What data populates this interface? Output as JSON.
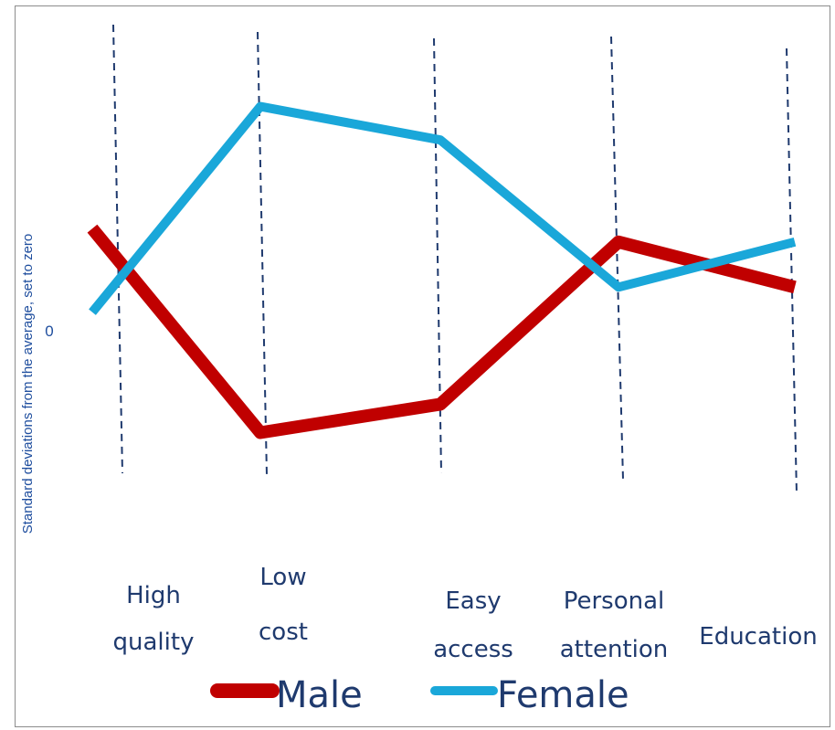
{
  "chart_data": {
    "type": "line",
    "ylabel": "Standard deviations from the average, set to zero",
    "y_ticks": [
      "0"
    ],
    "categories": [
      {
        "lines": [
          "High",
          "quality"
        ]
      },
      {
        "lines": [
          "Low",
          "cost"
        ]
      },
      {
        "lines": [
          "Easy",
          "access"
        ]
      },
      {
        "lines": [
          "Personal",
          "attention"
        ]
      },
      {
        "lines": [
          "Education"
        ]
      }
    ],
    "series": [
      {
        "name": "Male",
        "color": "#c00000",
        "values": [
          0.6,
          -0.62,
          -0.45,
          0.52,
          0.25
        ]
      },
      {
        "name": "Female",
        "color": "#1aa7d9",
        "values": [
          0.1,
          1.33,
          1.13,
          0.25,
          0.52
        ]
      }
    ],
    "ylim": [
      -1.5,
      2.3
    ],
    "grid": "vertical dashed lines at categories",
    "legend_position": "bottom"
  }
}
